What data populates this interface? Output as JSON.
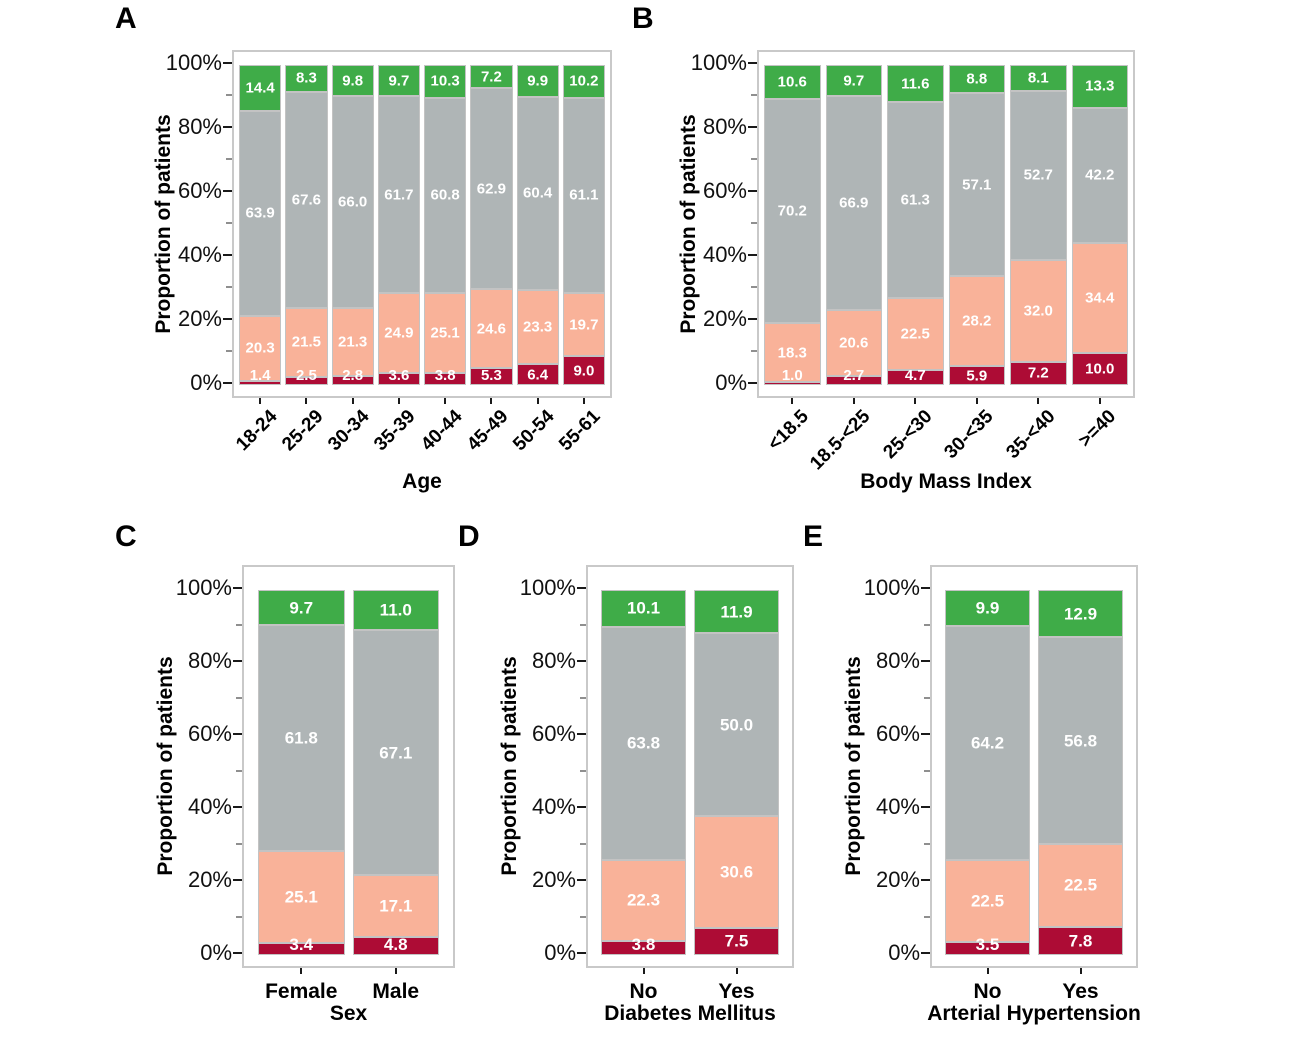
{
  "figure": {
    "ylabel": "Proportion of patients",
    "ytick_labels": [
      "0%",
      "20%",
      "40%",
      "60%",
      "80%",
      "100%"
    ],
    "colors": {
      "green": "#3fac48",
      "gray": "#afb5b6",
      "peach": "#f9b299",
      "crimson": "#ad0c35",
      "segment_border": "#c3c3c3",
      "plot_border": "#c9c9c9",
      "axis_text": "#000000",
      "minor_tick": "#8f8f8f",
      "value_label_text": "#ffffff"
    }
  },
  "chart_data": [
    {
      "panel": "A",
      "type": "bar",
      "stacked": true,
      "xlabel": "Age",
      "ylabel": "Proportion of patients",
      "ylim": [
        0,
        100
      ],
      "categories": [
        "18-24",
        "25-29",
        "30-34",
        "35-39",
        "40-44",
        "45-49",
        "50-54",
        "55-61"
      ],
      "series": [
        {
          "name": "green",
          "color": "#3fac48",
          "values": [
            14.4,
            8.3,
            9.8,
            9.7,
            10.3,
            7.2,
            9.9,
            10.2
          ]
        },
        {
          "name": "gray",
          "color": "#afb5b6",
          "values": [
            63.9,
            67.6,
            66.0,
            61.7,
            60.8,
            62.9,
            60.4,
            61.1
          ]
        },
        {
          "name": "peach",
          "color": "#f9b299",
          "values": [
            20.3,
            21.5,
            21.3,
            24.9,
            25.1,
            24.6,
            23.3,
            19.7
          ]
        },
        {
          "name": "crimson",
          "color": "#ad0c35",
          "values": [
            1.4,
            2.5,
            2.8,
            3.6,
            3.8,
            5.3,
            6.4,
            9.0
          ]
        }
      ]
    },
    {
      "panel": "B",
      "type": "bar",
      "stacked": true,
      "xlabel": "Body Mass Index",
      "ylabel": "Proportion of patients",
      "ylim": [
        0,
        100
      ],
      "categories": [
        "<18.5",
        "18.5-<25",
        "25-<30",
        "30-<35",
        "35-<40",
        ">=40"
      ],
      "series": [
        {
          "name": "green",
          "color": "#3fac48",
          "values": [
            10.6,
            9.7,
            11.6,
            8.8,
            8.1,
            13.3
          ]
        },
        {
          "name": "gray",
          "color": "#afb5b6",
          "values": [
            70.2,
            66.9,
            61.3,
            57.1,
            52.7,
            42.2
          ]
        },
        {
          "name": "peach",
          "color": "#f9b299",
          "values": [
            18.3,
            20.6,
            22.5,
            28.2,
            32.0,
            34.4
          ]
        },
        {
          "name": "crimson",
          "color": "#ad0c35",
          "values": [
            1.0,
            2.7,
            4.7,
            5.9,
            7.2,
            10.0
          ]
        }
      ]
    },
    {
      "panel": "C",
      "type": "bar",
      "stacked": true,
      "xlabel": "Sex",
      "ylabel": "Proportion of patients",
      "ylim": [
        0,
        100
      ],
      "categories": [
        "Female",
        "Male"
      ],
      "series": [
        {
          "name": "green",
          "color": "#3fac48",
          "values": [
            9.7,
            11.0
          ]
        },
        {
          "name": "gray",
          "color": "#afb5b6",
          "values": [
            61.8,
            67.1
          ]
        },
        {
          "name": "peach",
          "color": "#f9b299",
          "values": [
            25.1,
            17.1
          ]
        },
        {
          "name": "crimson",
          "color": "#ad0c35",
          "values": [
            3.4,
            4.8
          ]
        }
      ]
    },
    {
      "panel": "D",
      "type": "bar",
      "stacked": true,
      "xlabel": "Diabetes Mellitus",
      "ylabel": "Proportion of patients",
      "ylim": [
        0,
        100
      ],
      "categories": [
        "No",
        "Yes"
      ],
      "series": [
        {
          "name": "green",
          "color": "#3fac48",
          "values": [
            10.1,
            11.9
          ]
        },
        {
          "name": "gray",
          "color": "#afb5b6",
          "values": [
            63.8,
            50.0
          ]
        },
        {
          "name": "peach",
          "color": "#f9b299",
          "values": [
            22.3,
            30.6
          ]
        },
        {
          "name": "crimson",
          "color": "#ad0c35",
          "values": [
            3.8,
            7.5
          ]
        }
      ]
    },
    {
      "panel": "E",
      "type": "bar",
      "stacked": true,
      "xlabel": "Arterial Hypertension",
      "ylabel": "Proportion of patients",
      "ylim": [
        0,
        100
      ],
      "categories": [
        "No",
        "Yes"
      ],
      "series": [
        {
          "name": "green",
          "color": "#3fac48",
          "values": [
            9.9,
            12.9
          ]
        },
        {
          "name": "gray",
          "color": "#afb5b6",
          "values": [
            64.2,
            56.8
          ]
        },
        {
          "name": "peach",
          "color": "#f9b299",
          "values": [
            22.5,
            22.5
          ]
        },
        {
          "name": "crimson",
          "color": "#ad0c35",
          "values": [
            3.5,
            7.8
          ]
        }
      ]
    }
  ]
}
